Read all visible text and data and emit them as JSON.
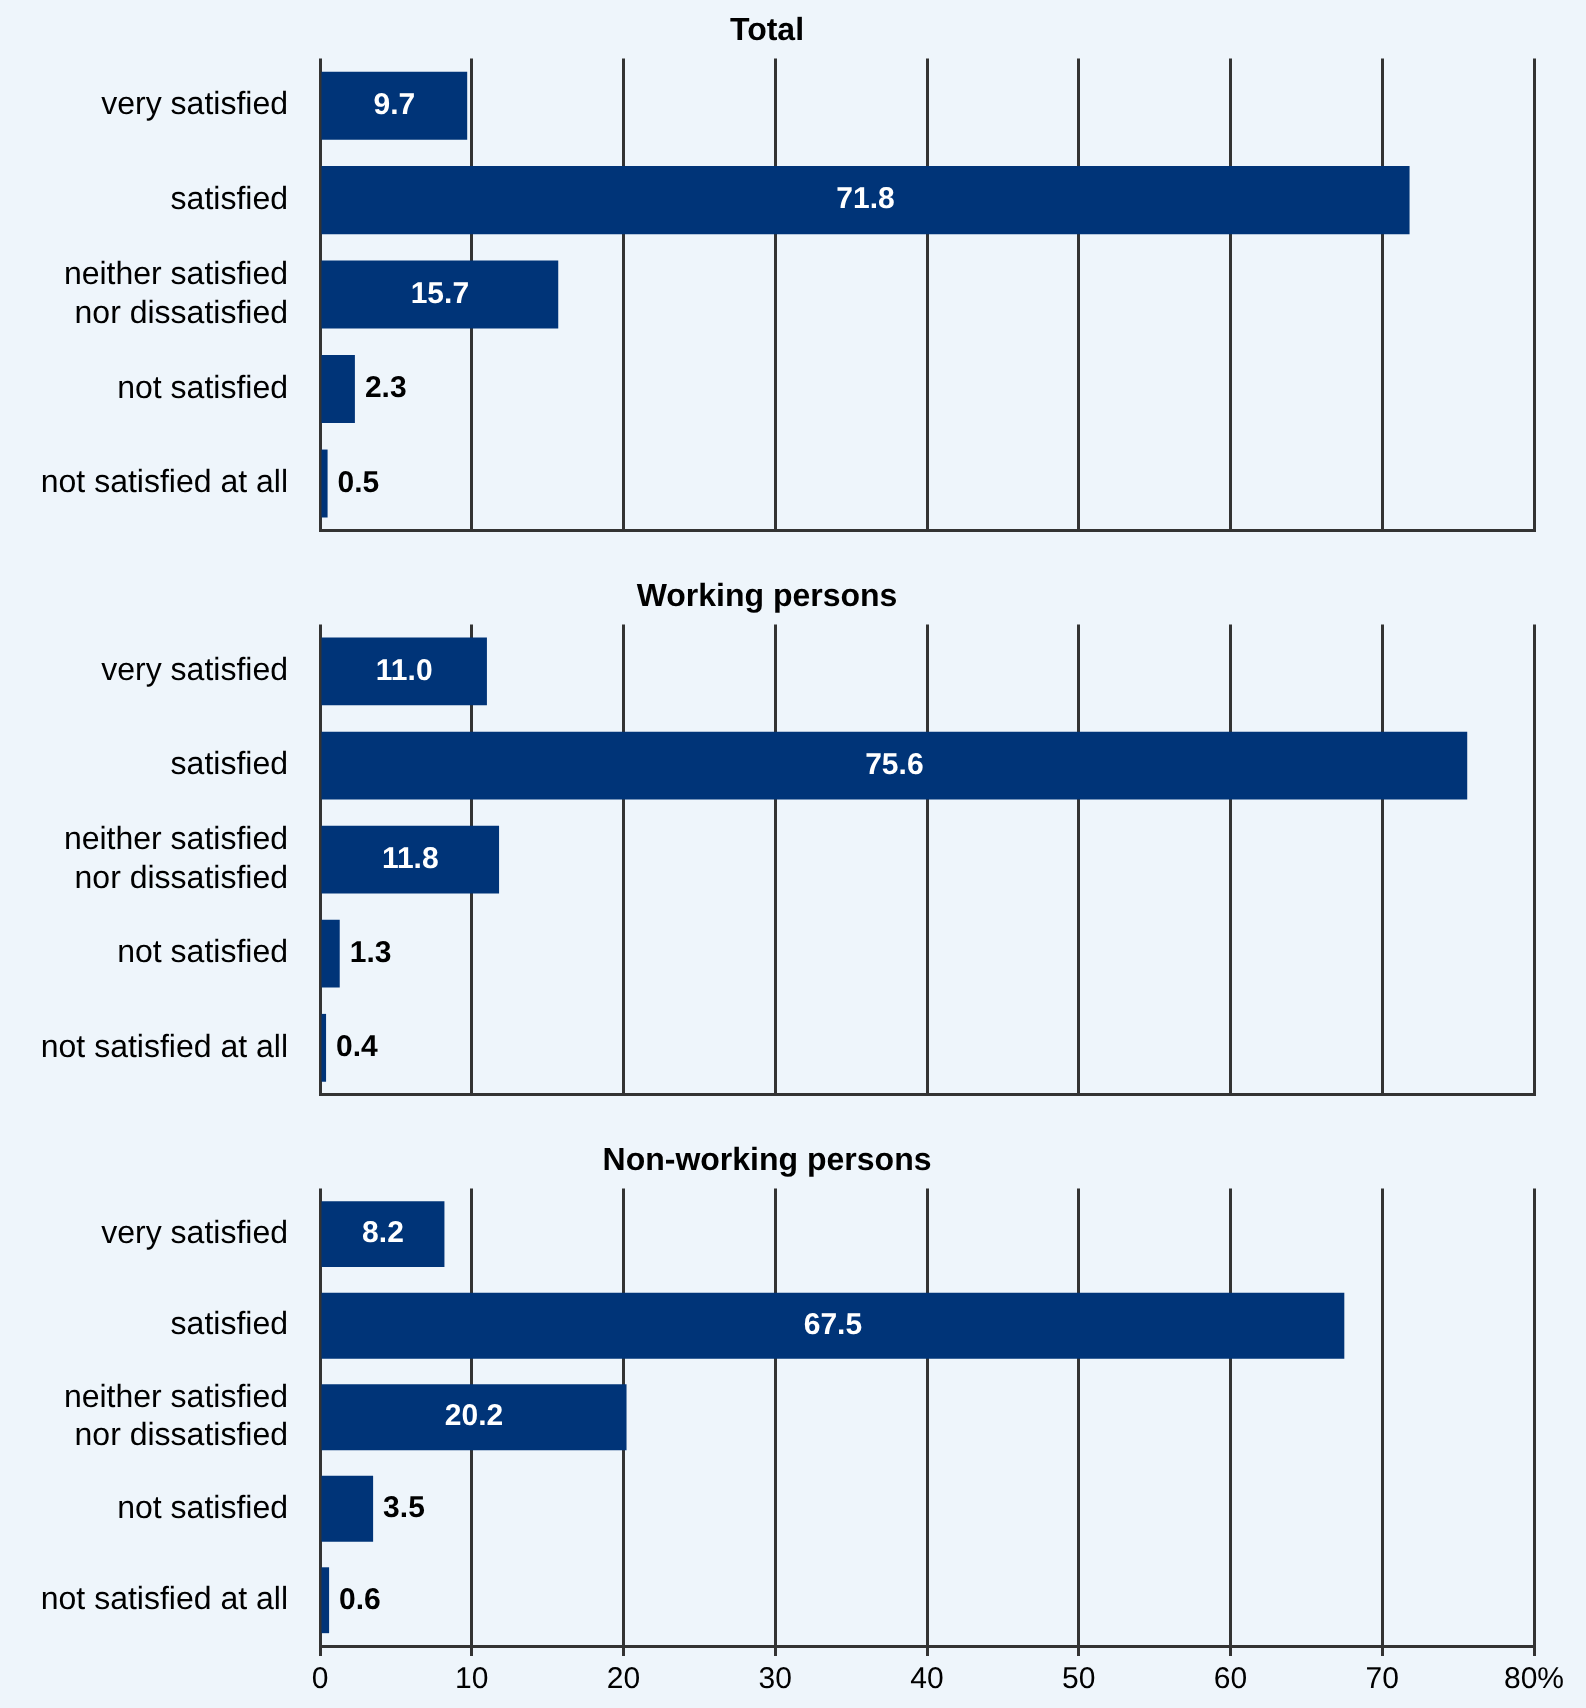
{
  "chart_data": [
    {
      "type": "bar",
      "orientation": "horizontal",
      "title": "Total",
      "categories": [
        "very satisfied",
        "satisfied",
        "neither satisfied nor dissatisfied",
        "not satisfied",
        "not satisfied at all"
      ],
      "values": [
        9.7,
        71.8,
        15.7,
        2.3,
        0.5
      ],
      "value_labels": [
        "9.7",
        "71.8",
        "15.7",
        "2.3",
        "0.5"
      ],
      "color": "#003478",
      "xlim": [
        0,
        80
      ],
      "xticks": [
        0,
        10,
        20,
        30,
        40,
        50,
        60,
        70,
        80
      ],
      "grid": "x",
      "tick_labels": "y"
    },
    {
      "type": "bar",
      "orientation": "horizontal",
      "title": "Working persons",
      "categories": [
        "very satisfied",
        "satisfied",
        "neither satisfied nor dissatisfied",
        "not satisfied",
        "not satisfied at all"
      ],
      "values": [
        11.0,
        75.6,
        11.8,
        1.3,
        0.4
      ],
      "value_labels": [
        "11.0",
        "75.6",
        "11.8",
        "1.3",
        "0.4"
      ],
      "color": "#003478",
      "xlim": [
        0,
        80
      ],
      "xticks": [
        0,
        10,
        20,
        30,
        40,
        50,
        60,
        70,
        80
      ],
      "grid": "x",
      "tick_labels": "y"
    },
    {
      "type": "bar",
      "orientation": "horizontal",
      "title": "Non-working persons",
      "categories": [
        "very satisfied",
        "satisfied",
        "neither satisfied nor dissatisfied",
        "not satisfied",
        "not satisfied at all"
      ],
      "values": [
        8.2,
        67.5,
        20.2,
        3.5,
        0.6
      ],
      "value_labels": [
        "8.2",
        "67.5",
        "20.2",
        "3.5",
        "0.6"
      ],
      "color": "#003478",
      "xlim": [
        0,
        80
      ],
      "xticks": [
        0,
        10,
        20,
        30,
        40,
        50,
        60,
        70,
        {
          "value": 80,
          "label": "80%"
        }
      ],
      "grid": "x"
    }
  ]
}
